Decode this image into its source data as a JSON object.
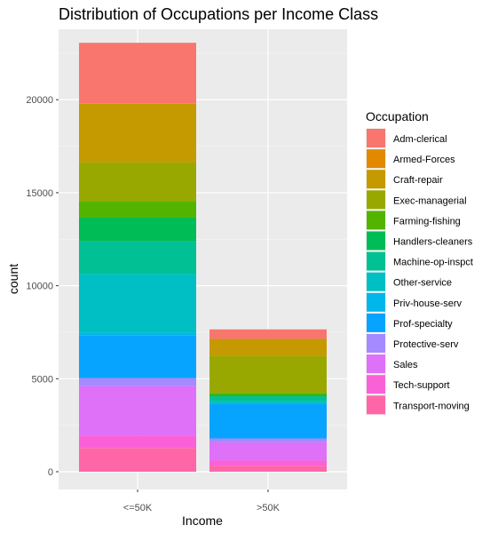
{
  "chart_data": {
    "type": "bar",
    "stacked": true,
    "title": "Distribution of Occupations per Income Class",
    "xlabel": "Income",
    "ylabel": "count",
    "categories": [
      "<=50K",
      ">50K"
    ],
    "ylim": [
      0,
      23200
    ],
    "yticks": [
      0,
      5000,
      10000,
      15000,
      20000
    ],
    "ytick_labels": [
      "0",
      "5000",
      "10000",
      "15000",
      "20000"
    ],
    "grid": true,
    "legend_title": "Occupation",
    "legend_position": "right",
    "series": [
      {
        "name": "Adm-clerical",
        "color": "#F8766D",
        "values": [
          3260,
          510
        ]
      },
      {
        "name": "Armed-Forces",
        "color": "#E38900",
        "values": [
          10,
          1
        ]
      },
      {
        "name": "Craft-repair",
        "color": "#C49A00",
        "values": [
          3150,
          930
        ]
      },
      {
        "name": "Exec-managerial",
        "color": "#99A800",
        "values": [
          2100,
          1970
        ]
      },
      {
        "name": "Farming-fishing",
        "color": "#53B400",
        "values": [
          880,
          110
        ]
      },
      {
        "name": "Handlers-cleaners",
        "color": "#00BC56",
        "values": [
          1280,
          90
        ]
      },
      {
        "name": "Machine-op-inspct",
        "color": "#00C094",
        "values": [
          1750,
          250
        ]
      },
      {
        "name": "Other-service",
        "color": "#00BFC4",
        "values": [
          3160,
          140
        ]
      },
      {
        "name": "Priv-house-serv",
        "color": "#00B6EB",
        "values": [
          150,
          1
        ]
      },
      {
        "name": "Prof-specialty",
        "color": "#06A4FF",
        "values": [
          2280,
          1860
        ]
      },
      {
        "name": "Protective-serv",
        "color": "#A58AFF",
        "values": [
          440,
          210
        ]
      },
      {
        "name": "Sales",
        "color": "#DF70F8",
        "values": [
          2670,
          980
        ]
      },
      {
        "name": "Tech-support",
        "color": "#FB61D7",
        "values": [
          650,
          280
        ]
      },
      {
        "name": "Transport-moving",
        "color": "#FF66A8",
        "values": [
          1280,
          320
        ]
      }
    ]
  }
}
